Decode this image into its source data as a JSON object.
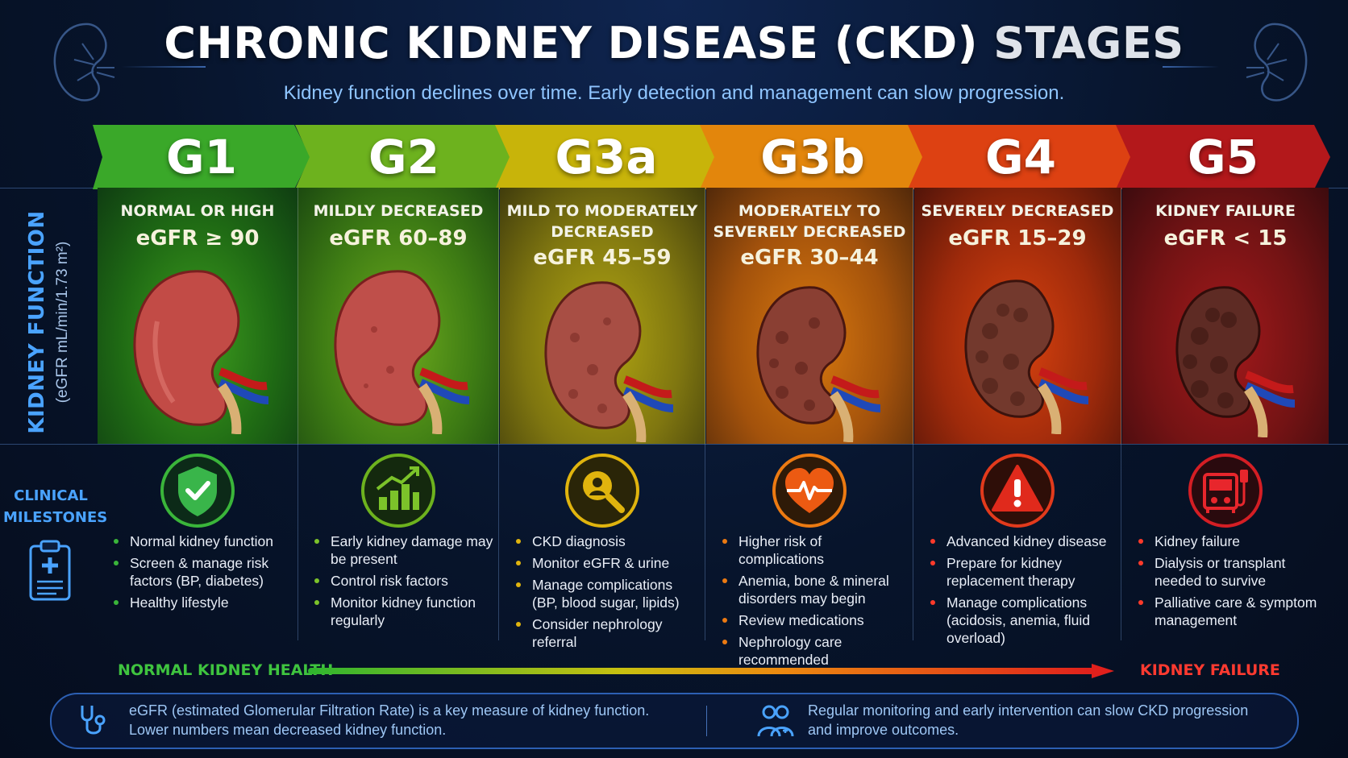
{
  "header": {
    "title_main": "CHRONIC KIDNEY DISEASE (CKD)",
    "title_end": "STAGES",
    "subtitle": "Kidney function declines over time. Early detection and management can slow progression."
  },
  "axis": {
    "kidney_function": "KIDNEY FUNCTION",
    "kidney_function_unit": "(eGFR mL/min/1.73 m²)",
    "clinical_milestones_line1": "CLINICAL",
    "clinical_milestones_line2": "MILESTONES"
  },
  "stages": [
    {
      "id": "G1",
      "name": "NORMAL OR HIGH",
      "egfr": "eGFR ≥ 90",
      "color": "#3aa829",
      "icon": "shield-check-icon",
      "bullets": [
        "Normal kidney function",
        "Screen & manage risk factors (BP, diabetes)",
        "Healthy lifestyle"
      ]
    },
    {
      "id": "G2",
      "name": "MILDLY DECREASED",
      "egfr": "eGFR 60–89",
      "color": "#6db21e",
      "icon": "rising-chart-icon",
      "bullets": [
        "Early kidney damage may be present",
        "Control risk factors",
        "Monitor kidney function regularly"
      ]
    },
    {
      "id": "G3a",
      "name": "MILD TO MODERATELY DECREASED",
      "egfr": "eGFR 45–59",
      "color": "#c8b40a",
      "icon": "magnifier-person-icon",
      "bullets": [
        "CKD diagnosis",
        "Monitor eGFR & urine",
        "Manage complications (BP, blood sugar, lipids)",
        "Consider nephrology referral"
      ]
    },
    {
      "id": "G3b",
      "name": "MODERATELY TO SEVERELY DECREASED",
      "egfr": "eGFR 30–44",
      "color": "#e3860c",
      "icon": "heart-pulse-icon",
      "bullets": [
        "Higher risk of complications",
        "Anemia, bone & mineral disorders may begin",
        "Review medications",
        "Nephrology care recommended"
      ]
    },
    {
      "id": "G4",
      "name": "SEVERELY DECREASED",
      "egfr": "eGFR 15–29",
      "color": "#dd4112",
      "icon": "warning-icon",
      "bullets": [
        "Advanced kidney disease",
        "Prepare for kidney replacement therapy",
        "Manage complications (acidosis, anemia, fluid overload)"
      ]
    },
    {
      "id": "G5",
      "name": "KIDNEY FAILURE",
      "egfr": "eGFR < 15",
      "color": "#b3181b",
      "icon": "dialysis-machine-icon",
      "bullets": [
        "Kidney failure",
        "Dialysis or transplant needed to survive",
        "Palliative care & symptom management"
      ]
    }
  ],
  "progression": {
    "start_label": "NORMAL KIDNEY HEALTH",
    "end_label": "KIDNEY FAILURE"
  },
  "footer": {
    "left_line1": "eGFR (estimated Glomerular Filtration Rate) is a key measure of kidney function.",
    "left_line2": "Lower numbers mean decreased kidney function.",
    "right_line1": "Regular monitoring and early intervention can slow CKD progression",
    "right_line2": "and improve outcomes.",
    "left_icon": "stethoscope-icon",
    "right_icon": "doctors-icon"
  }
}
